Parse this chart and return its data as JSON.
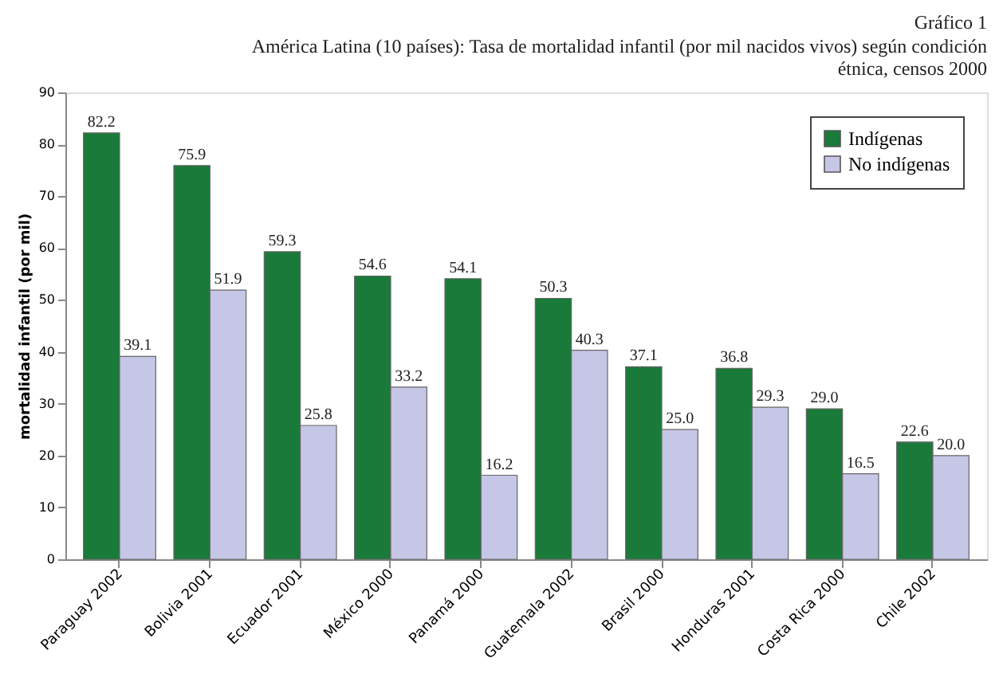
{
  "chart_data": {
    "type": "bar",
    "title": "Gráfico 1",
    "subtitle": "América Latina (10 países): Tasa de mortalidad infantil (por mil nacidos vivos) según condición étnica, censos 2000",
    "ylabel": "mortalidad infantil (por mil)",
    "categories": [
      "Paraguay 2002",
      "Bolivia 2001",
      "Ecuador 2001",
      "México 2000",
      "Panamá 2000",
      "Guatemala 2002",
      "Brasil 2000",
      "Honduras 2001",
      "Costa Rica 2000",
      "Chile 2002"
    ],
    "series": [
      {
        "name": "Indígenas",
        "color": "#1a7a3a",
        "values": [
          82.2,
          75.9,
          59.3,
          54.6,
          54.1,
          50.3,
          37.1,
          36.8,
          29.0,
          22.6
        ],
        "value_labels": [
          "82.2",
          "75.9",
          "59.3",
          "54.6",
          "54.1",
          "50.3",
          "37.1",
          "36.8",
          "29.0",
          "22.6"
        ]
      },
      {
        "name": "No indígenas",
        "color": "#c6c6e6",
        "values": [
          39.1,
          51.9,
          25.8,
          33.2,
          16.2,
          40.3,
          25.0,
          29.3,
          16.5,
          20.0
        ],
        "value_labels": [
          "39.1",
          "51.9",
          "25.8",
          "33.2",
          "16.2",
          "40.3",
          "25.0",
          "29.3",
          "16.5",
          "20.0"
        ]
      }
    ],
    "ylim": [
      0,
      90
    ],
    "yticks": [
      0,
      10,
      20,
      30,
      40,
      50,
      60,
      70,
      80,
      90
    ],
    "legend": "top right",
    "grid": false
  }
}
